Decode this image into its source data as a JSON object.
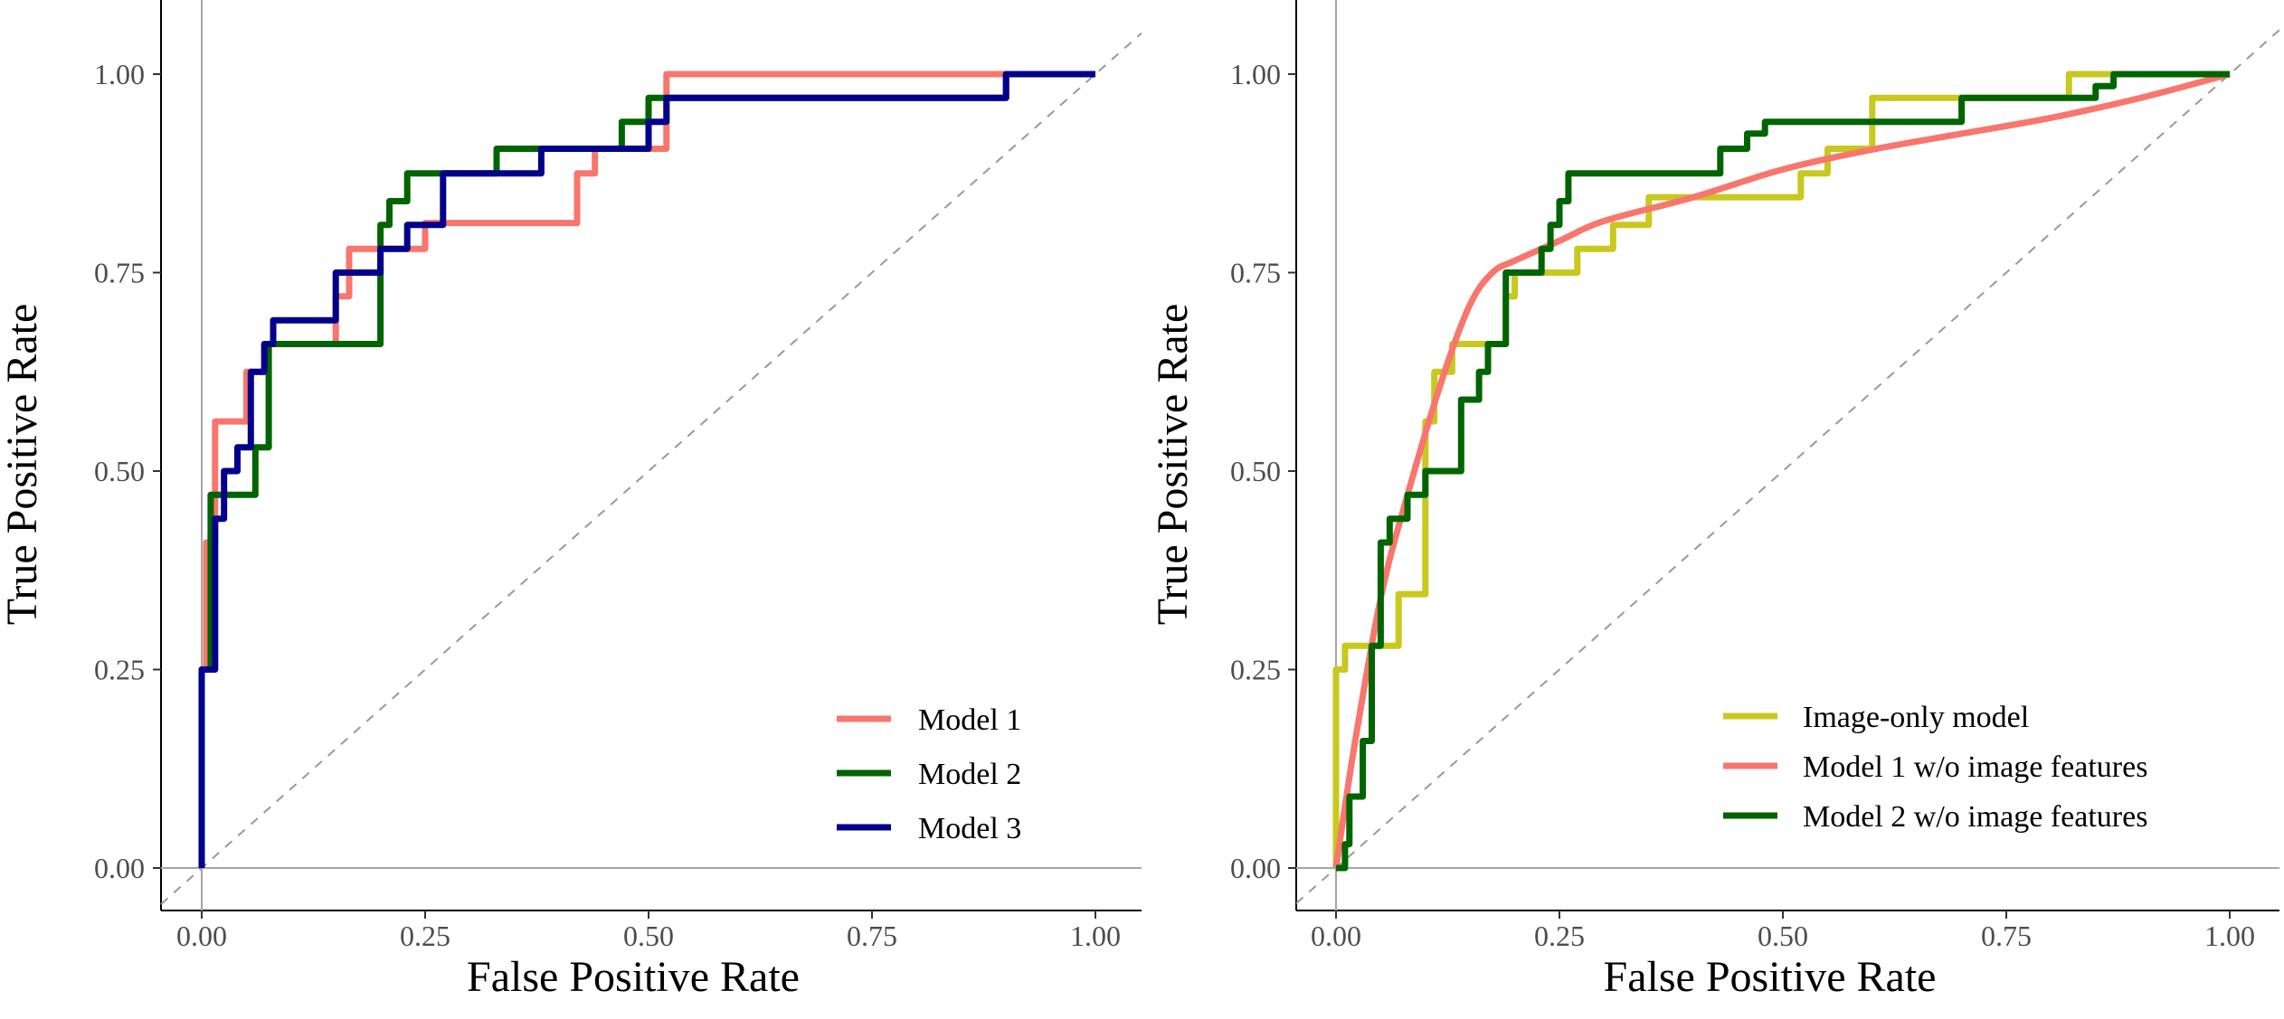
{
  "chart_data": [
    {
      "type": "line",
      "panel": "left",
      "xlabel": "False Positive Rate",
      "ylabel": "True Positive Rate",
      "xlim": [
        0,
        1
      ],
      "ylim": [
        0,
        1
      ],
      "x_ticks": [
        "0.00",
        "0.25",
        "0.50",
        "0.75",
        "1.00"
      ],
      "y_ticks": [
        "0.00",
        "0.25",
        "0.50",
        "0.75",
        "1.00"
      ],
      "x_tick_values": [
        0,
        0.25,
        0.5,
        0.75,
        1
      ],
      "y_tick_values": [
        0,
        0.25,
        0.5,
        0.75,
        1
      ],
      "grid": false,
      "reference_line": "diagonal dashed",
      "legend_position": "bottom-right",
      "series": [
        {
          "name": "Model 1",
          "color": "#f8766d",
          "style": "step",
          "x": [
            0,
            0,
            0.005,
            0.005,
            0.015,
            0.015,
            0.05,
            0.05,
            0.07,
            0.07,
            0.15,
            0.15,
            0.165,
            0.165,
            0.25,
            0.25,
            0.42,
            0.42,
            0.43,
            0.43,
            0.44,
            0.44,
            0.52,
            0.52,
            0.9,
            0.9,
            1.0
          ],
          "y": [
            0,
            0.25,
            0.25,
            0.41,
            0.41,
            0.5625,
            0.5625,
            0.625,
            0.625,
            0.66,
            0.66,
            0.72,
            0.72,
            0.78,
            0.78,
            0.8125,
            0.8125,
            0.875,
            0.875,
            0.875,
            0.875,
            0.906,
            0.906,
            1.0,
            1.0,
            1.0,
            1.0
          ]
        },
        {
          "name": "Model 2",
          "color": "#006400",
          "style": "step",
          "x": [
            0,
            0,
            0.01,
            0.01,
            0.06,
            0.06,
            0.075,
            0.075,
            0.2,
            0.2,
            0.21,
            0.21,
            0.22,
            0.22,
            0.23,
            0.23,
            0.33,
            0.33,
            0.47,
            0.47,
            0.5,
            0.5,
            0.9,
            0.9,
            1.0
          ],
          "y": [
            0,
            0.25,
            0.25,
            0.47,
            0.47,
            0.53,
            0.53,
            0.66,
            0.66,
            0.81,
            0.81,
            0.84,
            0.84,
            0.84,
            0.84,
            0.875,
            0.875,
            0.906,
            0.906,
            0.94,
            0.94,
            0.97,
            0.97,
            1.0,
            1.0
          ]
        },
        {
          "name": "Model 3",
          "color": "#00008b",
          "style": "step",
          "x": [
            0,
            0,
            0.015,
            0.015,
            0.025,
            0.025,
            0.04,
            0.04,
            0.055,
            0.055,
            0.07,
            0.07,
            0.08,
            0.08,
            0.15,
            0.15,
            0.2,
            0.2,
            0.23,
            0.23,
            0.25,
            0.25,
            0.27,
            0.27,
            0.38,
            0.38,
            0.5,
            0.5,
            0.52,
            0.52,
            0.9,
            0.9,
            1.0
          ],
          "y": [
            0,
            0.25,
            0.25,
            0.44,
            0.44,
            0.5,
            0.5,
            0.53,
            0.53,
            0.625,
            0.625,
            0.66,
            0.66,
            0.69,
            0.69,
            0.75,
            0.75,
            0.78,
            0.78,
            0.81,
            0.81,
            0.81,
            0.81,
            0.875,
            0.875,
            0.906,
            0.906,
            0.94,
            0.94,
            0.97,
            0.97,
            1.0,
            1.0
          ]
        }
      ]
    },
    {
      "type": "line",
      "panel": "right",
      "xlabel": "False Positive Rate",
      "ylabel": "True Positive Rate",
      "xlim": [
        0,
        1
      ],
      "ylim": [
        0,
        1
      ],
      "x_ticks": [
        "0.00",
        "0.25",
        "0.50",
        "0.75",
        "1.00"
      ],
      "y_ticks": [
        "0.00",
        "0.25",
        "0.50",
        "0.75",
        "1.00"
      ],
      "x_tick_values": [
        0,
        0.25,
        0.5,
        0.75,
        1
      ],
      "y_tick_values": [
        0,
        0.25,
        0.5,
        0.75,
        1
      ],
      "grid": false,
      "reference_line": "diagonal dashed",
      "legend_position": "bottom-right",
      "series": [
        {
          "name": "Image-only model",
          "color": "#c8c81e",
          "style": "step",
          "x": [
            0,
            0,
            0.01,
            0.01,
            0.03,
            0.03,
            0.05,
            0.05,
            0.07,
            0.07,
            0.1,
            0.1,
            0.11,
            0.11,
            0.13,
            0.13,
            0.19,
            0.19,
            0.2,
            0.2,
            0.22,
            0.22,
            0.27,
            0.27,
            0.31,
            0.31,
            0.35,
            0.35,
            0.52,
            0.52,
            0.55,
            0.55,
            0.6,
            0.6,
            0.82,
            0.82,
            0.85,
            0.85,
            1.0
          ],
          "y": [
            0,
            0.25,
            0.25,
            0.28,
            0.28,
            0.28,
            0.28,
            0.28,
            0.28,
            0.345,
            0.345,
            0.5625,
            0.5625,
            0.625,
            0.625,
            0.66,
            0.66,
            0.72,
            0.72,
            0.75,
            0.75,
            0.75,
            0.75,
            0.78,
            0.78,
            0.81,
            0.81,
            0.845,
            0.845,
            0.875,
            0.875,
            0.906,
            0.906,
            0.97,
            0.97,
            1.0,
            1.0,
            1.0,
            1.0
          ]
        },
        {
          "name": "Model 1 w/o image features",
          "color": "#f8766d",
          "style": "smooth",
          "x": [
            0,
            0.02,
            0.05,
            0.08,
            0.12,
            0.15,
            0.175,
            0.2,
            0.25,
            0.3,
            0.4,
            0.5,
            0.6,
            0.7,
            0.8,
            0.9,
            1.0
          ],
          "y": [
            0,
            0.15,
            0.34,
            0.47,
            0.62,
            0.71,
            0.75,
            0.765,
            0.79,
            0.815,
            0.845,
            0.88,
            0.905,
            0.925,
            0.945,
            0.97,
            1.0
          ]
        },
        {
          "name": "Model 2 w/o image features",
          "color": "#006400",
          "style": "step",
          "x": [
            0,
            0.01,
            0.01,
            0.015,
            0.015,
            0.03,
            0.03,
            0.04,
            0.04,
            0.05,
            0.05,
            0.06,
            0.06,
            0.08,
            0.08,
            0.1,
            0.1,
            0.14,
            0.14,
            0.16,
            0.16,
            0.17,
            0.17,
            0.19,
            0.19,
            0.23,
            0.23,
            0.24,
            0.24,
            0.25,
            0.25,
            0.26,
            0.26,
            0.43,
            0.43,
            0.46,
            0.46,
            0.48,
            0.48,
            0.55,
            0.55,
            0.7,
            0.7,
            0.85,
            0.85,
            0.87,
            0.87,
            1.0
          ],
          "y": [
            0,
            0,
            0.03,
            0.03,
            0.09,
            0.09,
            0.16,
            0.16,
            0.28,
            0.28,
            0.41,
            0.41,
            0.44,
            0.44,
            0.47,
            0.47,
            0.5,
            0.5,
            0.59,
            0.59,
            0.625,
            0.625,
            0.66,
            0.66,
            0.75,
            0.75,
            0.78,
            0.78,
            0.81,
            0.81,
            0.84,
            0.84,
            0.875,
            0.875,
            0.906,
            0.906,
            0.925,
            0.925,
            0.94,
            0.94,
            0.94,
            0.94,
            0.97,
            0.97,
            0.985,
            0.985,
            1.0,
            1.0
          ]
        }
      ]
    }
  ]
}
